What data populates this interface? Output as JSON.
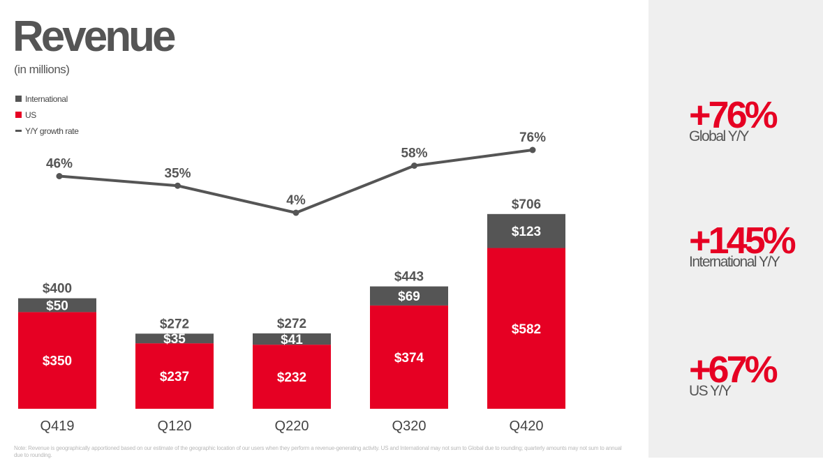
{
  "header": {
    "title": "Revenue",
    "subtitle": "(in millions)"
  },
  "legend": [
    {
      "label": "International",
      "color": "#555555",
      "shape": "square"
    },
    {
      "label": "US",
      "color": "#e60023",
      "shape": "square"
    },
    {
      "label": "Y/Y growth rate",
      "color": "#555555",
      "shape": "line"
    }
  ],
  "chart_data": {
    "type": "bar",
    "stacked": true,
    "title": "Revenue",
    "subtitle": "(in millions)",
    "categories": [
      "Q419",
      "Q120",
      "Q220",
      "Q320",
      "Q420"
    ],
    "series": [
      {
        "name": "US",
        "color": "#e60023",
        "values": [
          350,
          237,
          232,
          374,
          582
        ],
        "labels": [
          "$350",
          "$237",
          "$232",
          "$374",
          "$582"
        ]
      },
      {
        "name": "International",
        "color": "#555555",
        "values": [
          50,
          35,
          41,
          69,
          123
        ],
        "labels": [
          "$50",
          "$35",
          "$41",
          "$69",
          "$123"
        ]
      }
    ],
    "totals": [
      400,
      272,
      272,
      443,
      706
    ],
    "total_labels": [
      "$400",
      "$272",
      "$272",
      "$443",
      "$706"
    ],
    "line_series": {
      "name": "Y/Y growth rate",
      "color": "#555555",
      "values": [
        46,
        35,
        4,
        58,
        76
      ],
      "labels": [
        "46%",
        "35%",
        "4%",
        "58%",
        "76%"
      ]
    },
    "ylim": [
      0,
      800
    ],
    "grid": false,
    "legend_position": "top-left"
  },
  "kpis": [
    {
      "value": "+76%",
      "label": "Global Y/Y"
    },
    {
      "value": "+145%",
      "label": "International Y/Y"
    },
    {
      "value": "+67%",
      "label": "US Y/Y"
    }
  ],
  "footnote": "Note: Revenue is geographically apportioned based on our estimate of the geographic location of our users when they perform a revenue-generating activity. US and International may not sum to Global due to rounding; quarterly amounts may not sum to annual due to rounding."
}
